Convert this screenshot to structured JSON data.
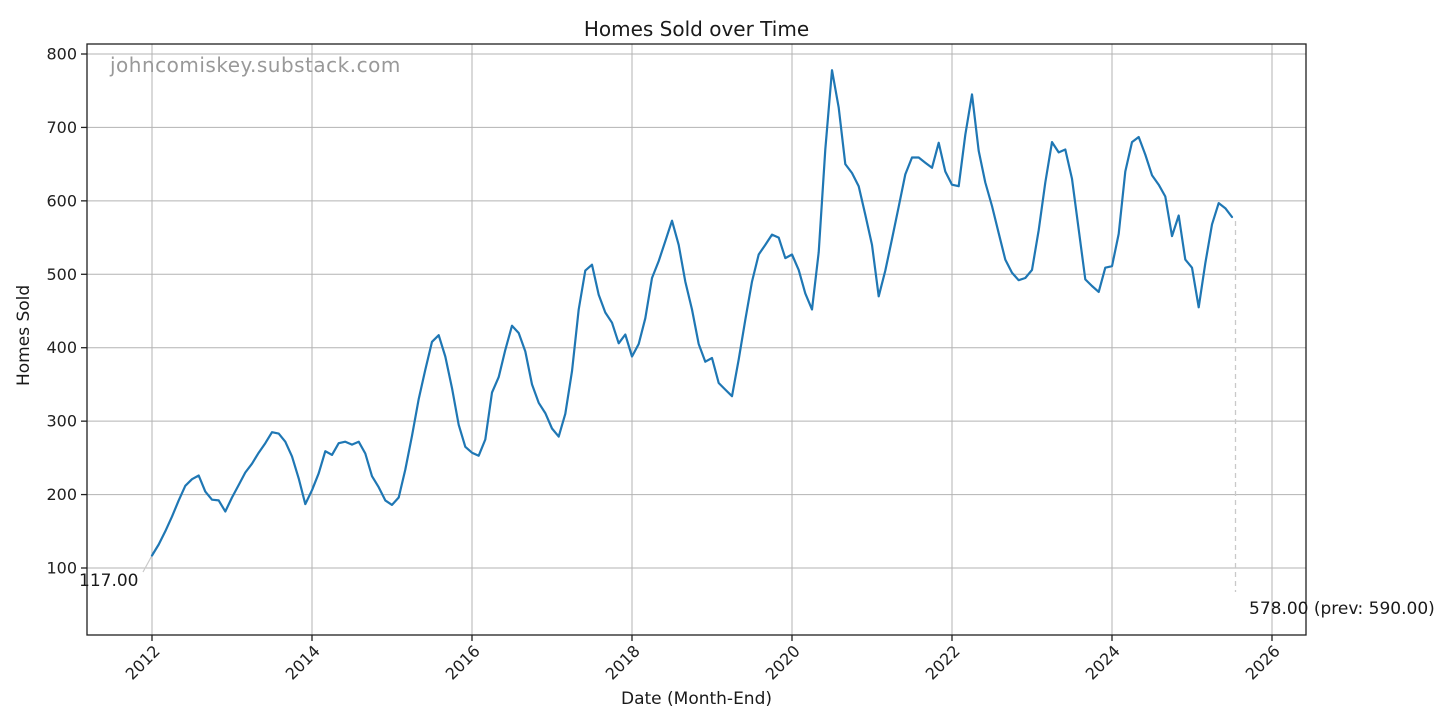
{
  "chart_data": {
    "type": "line",
    "title": "Homes Sold over Time",
    "xlabel": "Date (Month-End)",
    "ylabel": "Homes Sold",
    "watermark": "johncomiskey.substack.com",
    "grid": true,
    "legend": null,
    "x_ticks": [
      2012,
      2014,
      2016,
      2018,
      2020,
      2022,
      2024,
      2026
    ],
    "x_tick_labels": [
      "2012",
      "2014",
      "2016",
      "2018",
      "2020",
      "2022",
      "2024",
      "2026"
    ],
    "y_ticks": [
      100,
      200,
      300,
      400,
      500,
      600,
      700,
      800
    ],
    "y_tick_labels": [
      "100",
      "200",
      "300",
      "400",
      "500",
      "600",
      "700",
      "800"
    ],
    "ylim_shown": [
      100,
      800
    ],
    "xlim_shown": [
      2012,
      2026
    ],
    "series": [
      {
        "name": "Homes Sold",
        "frequency": "monthly",
        "start": "2011-12",
        "end": "2025-06",
        "values": [
          117,
          132,
          150,
          170,
          192,
          212,
          221,
          226,
          204,
          193,
          192,
          177,
          196,
          213,
          230,
          242,
          257,
          270,
          285,
          283,
          272,
          252,
          222,
          187,
          206,
          229,
          259,
          254,
          270,
          272,
          268,
          272,
          256,
          225,
          210,
          192,
          186,
          196,
          234,
          280,
          330,
          370,
          408,
          417,
          388,
          345,
          295,
          265,
          257,
          253,
          275,
          339,
          360,
          397,
          430,
          420,
          395,
          350,
          325,
          311,
          290,
          279,
          310,
          368,
          452,
          505,
          513,
          472,
          448,
          434,
          406,
          418,
          388,
          405,
          440,
          495,
          518,
          545,
          573,
          540,
          490,
          452,
          405,
          381,
          386,
          352,
          343,
          334,
          384,
          438,
          490,
          527,
          540,
          554,
          550,
          522,
          527,
          506,
          474,
          452,
          530,
          670,
          778,
          727,
          650,
          638,
          620,
          581,
          540,
          470,
          505,
          548,
          592,
          636,
          659,
          659,
          652,
          645,
          679,
          640,
          622,
          620,
          690,
          745,
          668,
          625,
          593,
          556,
          520,
          502,
          492,
          495,
          506,
          560,
          625,
          680,
          666,
          670,
          630,
          561,
          493,
          484,
          476,
          509,
          511,
          555,
          640,
          680,
          687,
          663,
          635,
          622,
          606,
          552,
          580,
          520,
          509,
          455,
          515,
          568,
          597,
          590,
          578
        ]
      }
    ],
    "annotations": [
      {
        "text": "117.00",
        "value": 117,
        "position": "first-point"
      },
      {
        "text": "578.00 (prev: 590.00)",
        "value": 578,
        "prev_value": 590,
        "position": "last-point"
      }
    ],
    "colors": {
      "line": "#1f77b4",
      "grid": "#b3b3b3",
      "spine": "#202020",
      "tick_label": "#202020",
      "watermark": "#999999",
      "leader": "#c9c9c9",
      "background": "#ffffff"
    }
  }
}
